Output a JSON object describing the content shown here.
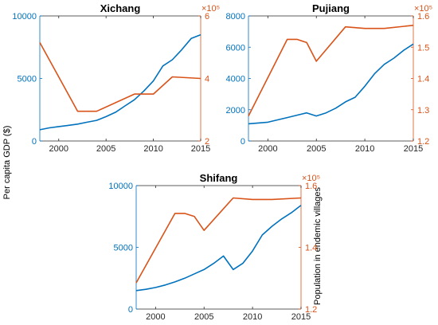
{
  "colors": {
    "gdp": "#0072BD",
    "population": "#D95319",
    "axis": "#262626"
  },
  "labels": {
    "gdp_axis": "Per capita GDP ($)",
    "population_axis": "Population in endemic villages"
  },
  "chart_data": [
    {
      "type": "line",
      "title": "Xichang",
      "xlim": [
        1998,
        2015
      ],
      "xticks": [
        2000,
        2005,
        2010,
        2015
      ],
      "xtick_labels": [
        "2000",
        "2005",
        "2010",
        "2015"
      ],
      "left_axis": {
        "ylim": [
          0,
          10000
        ],
        "ticks": [
          0,
          5000,
          10000
        ],
        "tick_labels": [
          "0",
          "5000",
          "10000"
        ]
      },
      "right_axis": {
        "ylim": [
          2,
          6
        ],
        "ticks": [
          2,
          4,
          6
        ],
        "tick_labels": [
          "2",
          "4",
          "6"
        ],
        "multiplier": "×10⁵"
      },
      "series": [
        {
          "axis": "left",
          "x": [
            1998,
            1999,
            2000,
            2001,
            2002,
            2003,
            2004,
            2005,
            2006,
            2007,
            2008,
            2009,
            2010,
            2011,
            2012,
            2013,
            2014,
            2015
          ],
          "y": [
            900,
            1050,
            1150,
            1250,
            1350,
            1500,
            1650,
            1950,
            2300,
            2800,
            3300,
            4000,
            4800,
            6000,
            6500,
            7300,
            8200,
            8500
          ]
        },
        {
          "axis": "right",
          "x": [
            1998,
            2002,
            2004,
            2008,
            2010,
            2012,
            2015
          ],
          "y": [
            5.15,
            2.95,
            2.95,
            3.5,
            3.5,
            4.05,
            4.0
          ]
        }
      ]
    },
    {
      "type": "line",
      "title": "Pujiang",
      "xlim": [
        1998,
        2015
      ],
      "xticks": [
        2000,
        2005,
        2010,
        2015
      ],
      "xtick_labels": [
        "2000",
        "2005",
        "2010",
        "2015"
      ],
      "left_axis": {
        "ylim": [
          0,
          8000
        ],
        "ticks": [
          0,
          2000,
          4000,
          6000,
          8000
        ],
        "tick_labels": [
          "0",
          "2000",
          "4000",
          "6000",
          "8000"
        ]
      },
      "right_axis": {
        "ylim": [
          1.2,
          1.6
        ],
        "ticks": [
          1.2,
          1.3,
          1.4,
          1.5,
          1.6
        ],
        "tick_labels": [
          "1.2",
          "1.3",
          "1.4",
          "1.5",
          "1.6"
        ],
        "multiplier": "×10⁵"
      },
      "series": [
        {
          "axis": "left",
          "x": [
            1998,
            1999,
            2000,
            2001,
            2002,
            2003,
            2004,
            2005,
            2006,
            2007,
            2008,
            2009,
            2010,
            2011,
            2012,
            2013,
            2014,
            2015
          ],
          "y": [
            1100,
            1150,
            1200,
            1350,
            1500,
            1650,
            1800,
            1600,
            1800,
            2100,
            2500,
            2800,
            3500,
            4300,
            4900,
            5300,
            5800,
            6200
          ]
        },
        {
          "axis": "right",
          "x": [
            1998,
            2002,
            2003,
            2004,
            2005,
            2008,
            2010,
            2012,
            2015
          ],
          "y": [
            1.28,
            1.525,
            1.525,
            1.515,
            1.455,
            1.565,
            1.56,
            1.56,
            1.57
          ]
        }
      ]
    },
    {
      "type": "line",
      "title": "Shifang",
      "xlim": [
        1998,
        2015
      ],
      "xticks": [
        2000,
        2005,
        2010,
        2015
      ],
      "xtick_labels": [
        "2000",
        "2005",
        "2010",
        "2015"
      ],
      "left_axis": {
        "ylim": [
          0,
          10000
        ],
        "ticks": [
          0,
          5000,
          10000
        ],
        "tick_labels": [
          "0",
          "5000",
          "10000"
        ]
      },
      "right_axis": {
        "ylim": [
          1.2,
          1.6
        ],
        "ticks": [
          1.2,
          1.4,
          1.6
        ],
        "tick_labels": [
          "1.2",
          "1.4",
          "1.6"
        ],
        "multiplier": "×10⁵"
      },
      "series": [
        {
          "axis": "left",
          "x": [
            1998,
            1999,
            2000,
            2001,
            2002,
            2003,
            2004,
            2005,
            2006,
            2007,
            2008,
            2009,
            2010,
            2011,
            2012,
            2013,
            2014,
            2015
          ],
          "y": [
            1500,
            1600,
            1750,
            1950,
            2200,
            2500,
            2850,
            3200,
            3700,
            4300,
            3200,
            3700,
            4700,
            6000,
            6700,
            7300,
            7800,
            8400
          ]
        },
        {
          "axis": "right",
          "x": [
            1998,
            2002,
            2003,
            2004,
            2005,
            2008,
            2010,
            2012,
            2015
          ],
          "y": [
            1.285,
            1.51,
            1.51,
            1.5,
            1.455,
            1.56,
            1.555,
            1.555,
            1.56
          ]
        }
      ]
    }
  ]
}
